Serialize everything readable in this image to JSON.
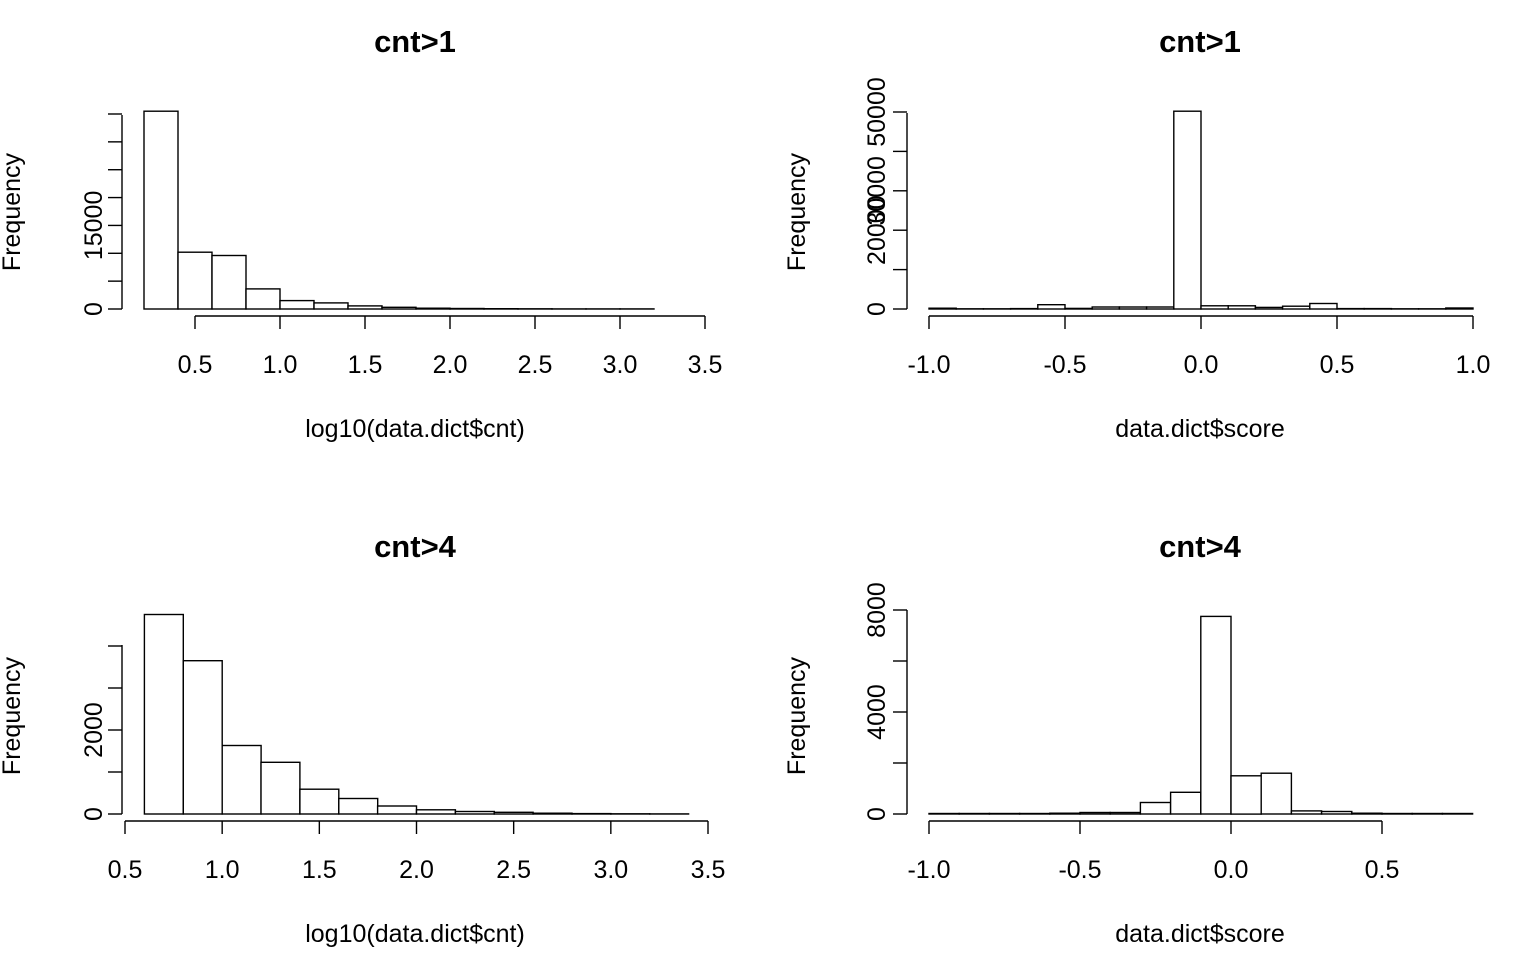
{
  "chart_data": [
    {
      "type": "bar",
      "title": "cnt>1",
      "xlabel": "log10(data.dict$cnt)",
      "ylabel": "Frequency",
      "x_ticks": [
        "0.5",
        "1.0",
        "1.5",
        "2.0",
        "2.5",
        "3.0",
        "3.5"
      ],
      "y_ticks": [
        "0",
        "15000"
      ],
      "bin_edges": [
        0.2,
        0.4,
        0.6,
        0.8,
        1.0,
        1.2,
        1.4,
        1.6,
        1.8,
        2.0,
        2.2,
        2.4,
        2.6,
        2.8,
        3.0,
        3.2,
        3.4
      ],
      "values": [
        35500,
        10200,
        9600,
        3600,
        1500,
        1100,
        550,
        300,
        150,
        90,
        60,
        40,
        25,
        15,
        10,
        5
      ],
      "xlim": [
        0.5,
        3.5
      ],
      "ylim": [
        0,
        35000
      ],
      "grid": false,
      "legend": "none"
    },
    {
      "type": "bar",
      "title": "cnt>1",
      "xlabel": "data.dict$score",
      "ylabel": "Frequency",
      "x_ticks": [
        "-1.0",
        "-0.5",
        "0.0",
        "0.5",
        "1.0"
      ],
      "y_ticks": [
        "0",
        "20000",
        "30000",
        "50000"
      ],
      "bin_edges": [
        -1.0,
        -0.9,
        -0.8,
        -0.7,
        -0.6,
        -0.5,
        -0.4,
        -0.3,
        -0.2,
        -0.1,
        0.0,
        0.1,
        0.2,
        0.3,
        0.4,
        0.5,
        0.6,
        0.7,
        0.8,
        0.9,
        1.0
      ],
      "values": [
        200,
        50,
        50,
        100,
        1100,
        150,
        500,
        500,
        500,
        50200,
        800,
        800,
        400,
        700,
        1400,
        100,
        100,
        50,
        50,
        250
      ],
      "xlim": [
        -1.0,
        1.0
      ],
      "ylim": [
        0,
        50000
      ],
      "grid": false,
      "legend": "none"
    },
    {
      "type": "bar",
      "title": "cnt>4",
      "xlabel": "log10(data.dict$cnt)",
      "ylabel": "Frequency",
      "x_ticks": [
        "0.5",
        "1.0",
        "1.5",
        "2.0",
        "2.5",
        "3.0",
        "3.5"
      ],
      "y_ticks": [
        "0",
        "2000"
      ],
      "bin_edges": [
        0.6,
        0.8,
        1.0,
        1.2,
        1.4,
        1.6,
        1.8,
        2.0,
        2.2,
        2.4,
        2.6,
        2.8,
        3.0,
        3.2,
        3.4
      ],
      "values": [
        4750,
        3650,
        1630,
        1230,
        590,
        370,
        190,
        100,
        60,
        40,
        20,
        10,
        5,
        3
      ],
      "xlim": [
        0.5,
        3.5
      ],
      "ylim": [
        0,
        4000
      ],
      "grid": false,
      "legend": "none"
    },
    {
      "type": "bar",
      "title": "cnt>4",
      "xlabel": "data.dict$score",
      "ylabel": "Frequency",
      "x_ticks": [
        "-1.0",
        "-0.5",
        "0.0",
        "0.5"
      ],
      "y_ticks": [
        "0",
        "4000",
        "8000"
      ],
      "bin_edges": [
        -1.0,
        -0.9,
        -0.8,
        -0.7,
        -0.6,
        -0.5,
        -0.4,
        -0.3,
        -0.2,
        -0.1,
        0.0,
        0.1,
        0.2,
        0.3,
        0.4,
        0.5,
        0.6,
        0.7,
        0.8
      ],
      "values": [
        20,
        20,
        20,
        20,
        30,
        60,
        60,
        450,
        850,
        7750,
        1500,
        1600,
        120,
        100,
        30,
        20,
        20,
        20
      ],
      "xlim": [
        -1.0,
        0.5
      ],
      "ylim": [
        0,
        8000
      ],
      "grid": false,
      "legend": "none"
    }
  ]
}
